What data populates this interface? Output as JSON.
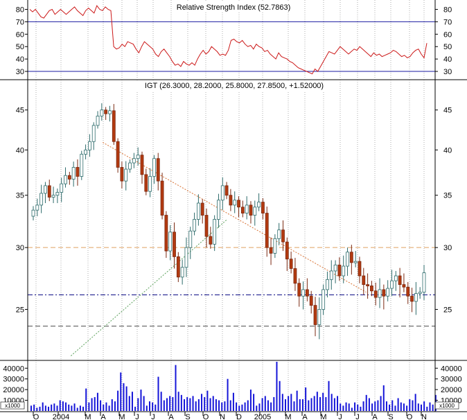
{
  "chart_data": [
    {
      "type": "line",
      "title": "Relative Strength Index (52.7863)",
      "ylim": [
        25,
        87
      ],
      "yticks": [
        30,
        40,
        50,
        60,
        70,
        80
      ],
      "reference_lines": [
        30,
        70
      ],
      "grid": "vertical dotted",
      "rsi": [
        80,
        78,
        80,
        77,
        74,
        73,
        76,
        79,
        80,
        76,
        78,
        80,
        78,
        76,
        78,
        80,
        82,
        79,
        77,
        75,
        79,
        81,
        79,
        77,
        83,
        80,
        79,
        82,
        80,
        79,
        50,
        48,
        49,
        52,
        50,
        54,
        53,
        52,
        48,
        45,
        50,
        54,
        52,
        50,
        48,
        44,
        42,
        46,
        48,
        45,
        42,
        38,
        35,
        36,
        34,
        38,
        36,
        35,
        37,
        35,
        40,
        44,
        47,
        44,
        46,
        50,
        48,
        46,
        43,
        44,
        43,
        47,
        55,
        56,
        54,
        53,
        55,
        52,
        50,
        51,
        48,
        52,
        50,
        49,
        46,
        47,
        44,
        42,
        40,
        45,
        42,
        41,
        40,
        38,
        37,
        35,
        33,
        32,
        31,
        30,
        29,
        28,
        32,
        30,
        34,
        38,
        42,
        46,
        45,
        44,
        47,
        50,
        48,
        46,
        44,
        46,
        48,
        47,
        50,
        48,
        46,
        44,
        42,
        45,
        43,
        44,
        42,
        43,
        44,
        45,
        47,
        46,
        44,
        42,
        43,
        41,
        42,
        45,
        47,
        48,
        44,
        41,
        52.79
      ]
    },
    {
      "type": "candlestick",
      "title": "IGT (26.3000, 28.2000, 25.8000, 27.8500, +1.52000)",
      "ylim": [
        21.6,
        48.9
      ],
      "yticks": [
        25,
        30,
        35,
        40,
        45
      ],
      "scale": "log",
      "x_ticks": [
        "O",
        "2004",
        "M",
        "A",
        "M",
        "J",
        "J",
        "A",
        "S",
        "O",
        "N",
        "D",
        "2005",
        "M",
        "A",
        "M",
        "J",
        "J",
        "A",
        "S",
        "O",
        "N"
      ],
      "horizontal_lines": [
        {
          "value": 30,
          "style": "dashed",
          "color": "#e0a060"
        },
        {
          "value": 26.1,
          "style": "dash-dot",
          "color": "#000080"
        },
        {
          "value": 23.8,
          "style": "dashed",
          "color": "#505050"
        }
      ],
      "trendlines": [
        {
          "from": [
            24,
            40.9
          ],
          "to": [
            115,
            26.3
          ],
          "color": "#d87030"
        },
        {
          "from": [
            13,
            21.8
          ],
          "to": [
            67,
            32.6
          ],
          "color": "#5aa05a"
        }
      ],
      "closes": [
        33.5,
        34.0,
        35.2,
        36.0,
        34.8,
        35.0,
        35.3,
        36.2,
        37.1,
        36.7,
        38.0,
        37.0,
        39.5,
        40.0,
        41.0,
        43.0,
        44.2,
        45.0,
        44.5,
        44.9,
        41.0,
        38.0,
        36.5,
        37.8,
        38.5,
        39.0,
        39.4,
        37.2,
        35.4,
        37.0,
        39.0,
        36.5,
        33.0,
        29.7,
        31.4,
        29.2,
        27.5,
        28.3,
        30.0,
        31.5,
        32.6,
        34.2,
        33.0,
        31.0,
        30.3,
        32.6,
        34.5,
        36.0,
        35.0,
        34.0,
        34.5,
        33.8,
        33.2,
        34.0,
        33.0,
        33.8,
        34.3,
        33.2,
        30.0,
        29.5,
        30.8,
        31.6,
        30.5,
        29.0,
        28.2,
        27.0,
        26.0,
        26.5,
        26.0,
        25.3,
        23.9,
        25.0,
        26.5,
        27.3,
        28.0,
        28.5,
        27.6,
        28.4,
        29.6,
        28.7,
        28.8,
        27.6,
        26.9,
        26.8,
        26.4,
        25.9,
        26.5,
        26.0,
        26.6,
        27.2,
        27.6,
        26.9,
        26.7,
        26.0,
        25.6,
        26.2,
        26.3,
        27.85
      ]
    },
    {
      "type": "bar",
      "title": "",
      "ylim": [
        0,
        46000
      ],
      "yticks": [
        10000,
        20000,
        30000,
        40000
      ],
      "ytick_labels": [
        "10000",
        "20000",
        "30000",
        "40000"
      ],
      "unit_label": "x1000",
      "volume": [
        5,
        6,
        3,
        4,
        8,
        5,
        4,
        6,
        7,
        5,
        10,
        9,
        8,
        6,
        5,
        7,
        3,
        5,
        4,
        21,
        8,
        12,
        13,
        17,
        10,
        6,
        8,
        5,
        11,
        9,
        19,
        36,
        26,
        23,
        14,
        18,
        4,
        12,
        20,
        14,
        5,
        9,
        8,
        6,
        32,
        18,
        10,
        12,
        14,
        13,
        43,
        18,
        15,
        11,
        13,
        12,
        14,
        9,
        11,
        16,
        13,
        19,
        12,
        14,
        11,
        10,
        8,
        9,
        30,
        10,
        17,
        8,
        5,
        6,
        8,
        10,
        20,
        16,
        5,
        7,
        12,
        14,
        10,
        8,
        13,
        46,
        28,
        16,
        11,
        14,
        16,
        9,
        19,
        11,
        11,
        22,
        10,
        12,
        14,
        18,
        13,
        17,
        13,
        28,
        16,
        12,
        14,
        7,
        5,
        8,
        7,
        3,
        8,
        6,
        4,
        9,
        15,
        12,
        7,
        9,
        10,
        14,
        24,
        9,
        6,
        10,
        5,
        12,
        8,
        7,
        5,
        11,
        10,
        16,
        7,
        6,
        9,
        4,
        8,
        6,
        15
      ]
    }
  ]
}
